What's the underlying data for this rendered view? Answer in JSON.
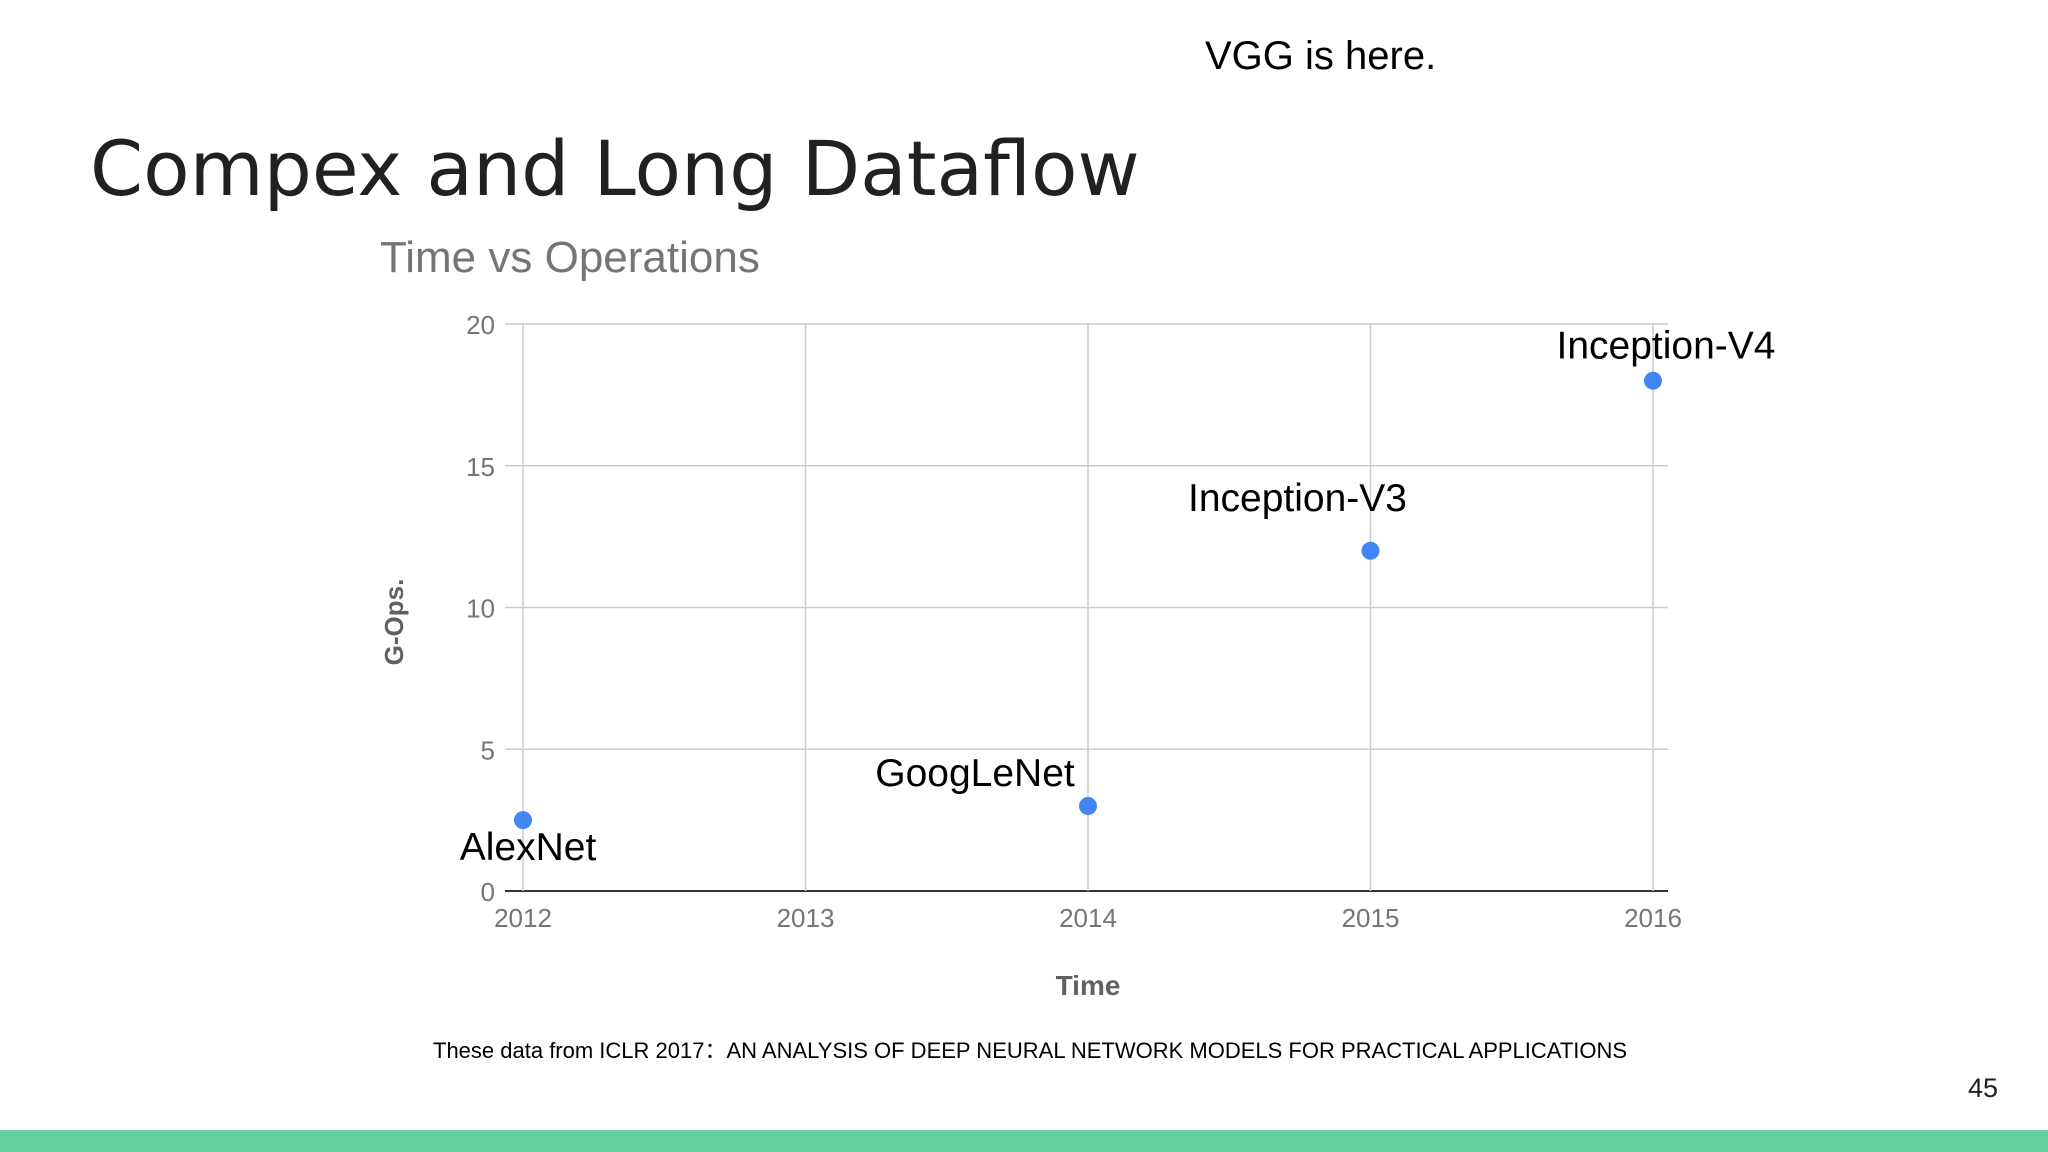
{
  "slide": {
    "note": "VGG is here.",
    "title": "Compex and Long Dataflow",
    "citation": "These data from ICLR 2017：AN ANALYSIS OF DEEP NEURAL NETWORK MODELS FOR PRACTICAL APPLICATIONS",
    "page_number": "45",
    "accent_color": "#66d19e"
  },
  "chart_data": {
    "type": "scatter",
    "title": "Time vs Operations",
    "xlabel": "Time",
    "ylabel": "G-Ops.",
    "xlim": [
      2012,
      2016
    ],
    "ylim": [
      0,
      20
    ],
    "xticks": [
      "2012",
      "2013",
      "2014",
      "2015",
      "2016"
    ],
    "yticks": [
      "0",
      "5",
      "10",
      "15",
      "20"
    ],
    "grid": true,
    "point_color": "#4285f4",
    "points": [
      {
        "label": "AlexNet",
        "x": 2012,
        "y": 2.5
      },
      {
        "label": "GoogLeNet",
        "x": 2014,
        "y": 3
      },
      {
        "label": "Inception-V3",
        "x": 2015,
        "y": 12
      },
      {
        "label": "Inception-V4",
        "x": 2016,
        "y": 18
      }
    ]
  }
}
